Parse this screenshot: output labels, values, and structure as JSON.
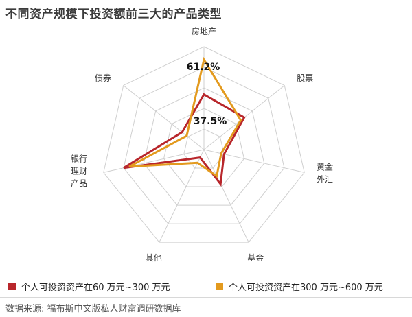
{
  "title": "不同资产规模下投资额前三大的产品类型",
  "chart_data": {
    "type": "radar",
    "axes": [
      "房地产",
      "股票",
      "黄金\n外汇",
      "基金",
      "其他",
      "银行\n理财\n产品",
      "债券"
    ],
    "max": 70,
    "series": [
      {
        "name": "个人可投资资产在60 万元~300 万元",
        "color": "#b8262b",
        "values": [
          37.5,
          35,
          14,
          26,
          6,
          56,
          19
        ]
      },
      {
        "name": "个人可投资资产在300 万元~600 万元",
        "color": "#e39a1e",
        "values": [
          61.2,
          32,
          12,
          20,
          10,
          52,
          15
        ]
      }
    ],
    "annotations": [
      "61.2%",
      "37.5%"
    ]
  },
  "legend": {
    "item1": "个人可投资资产在60 万元~300 万元",
    "item2": "个人可投资资产在300 万元~600 万元"
  },
  "source": "数据来源: 福布斯中文版私人财富调研数据库",
  "colors": {
    "series1": "#b8262b",
    "series2": "#e39a1e",
    "grid": "#c8c8c8",
    "rule": "#c9a96a"
  }
}
